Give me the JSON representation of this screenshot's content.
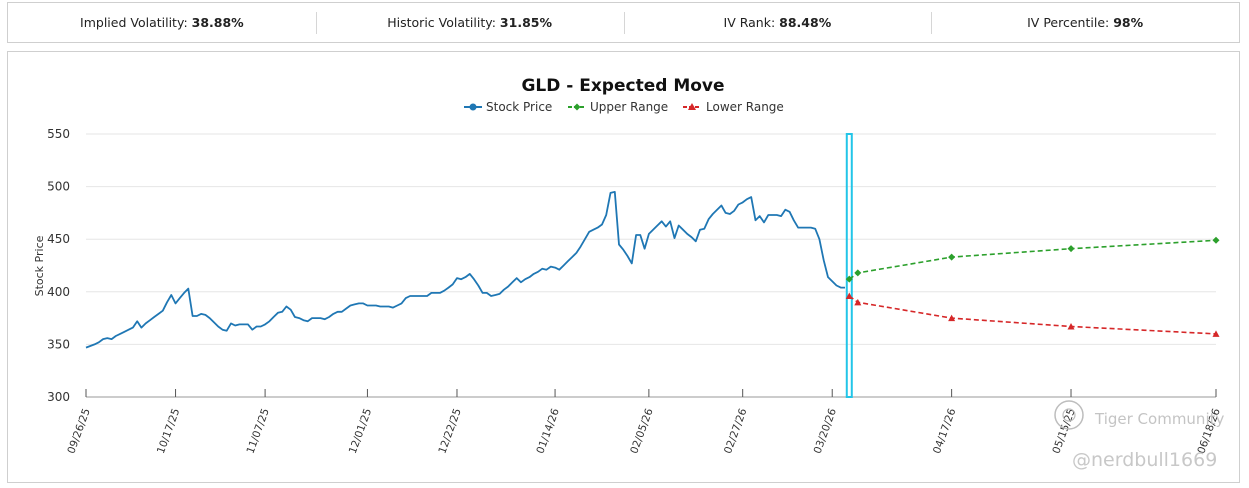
{
  "stats": [
    {
      "label": "Implied Volatility:",
      "value": "38.88%"
    },
    {
      "label": "Historic Volatility:",
      "value": "31.85%"
    },
    {
      "label": "IV Rank:",
      "value": "88.48%"
    },
    {
      "label": "IV Percentile:",
      "value": "98%"
    }
  ],
  "watermark": {
    "brand": "Tiger Community",
    "handle": "@nerdbull1669"
  },
  "colors": {
    "stock": "#1f77b4",
    "upper": "#2ca02c",
    "lower": "#d62728",
    "marker": "#22c5e8"
  },
  "chart_data": {
    "type": "line",
    "title": "GLD - Expected Move",
    "xlabel": "",
    "ylabel": "Stock Price",
    "ylim": [
      300,
      550
    ],
    "yticks": [
      300,
      350,
      400,
      450,
      500,
      550
    ],
    "xlim": [
      0,
      265
    ],
    "grid": true,
    "legend": "top-center",
    "x_ticks": [
      {
        "x": 0,
        "label": "09/26/25"
      },
      {
        "x": 21,
        "label": "10/17/25"
      },
      {
        "x": 42,
        "label": "11/07/25"
      },
      {
        "x": 66,
        "label": "12/01/25"
      },
      {
        "x": 87,
        "label": "12/22/25"
      },
      {
        "x": 110,
        "label": "01/14/26"
      },
      {
        "x": 132,
        "label": "02/05/26"
      },
      {
        "x": 154,
        "label": "02/27/26"
      },
      {
        "x": 175,
        "label": "03/20/26"
      },
      {
        "x": 203,
        "label": "04/17/26"
      },
      {
        "x": 231,
        "label": "05/15/25"
      },
      {
        "x": 265,
        "label": "06/18/26"
      }
    ],
    "current_marker_x": 179,
    "series": [
      {
        "name": "Stock Price",
        "marker": "circle",
        "points": [
          [
            0,
            347
          ],
          [
            2,
            350
          ],
          [
            3,
            352
          ],
          [
            4,
            355
          ],
          [
            5,
            356
          ],
          [
            6,
            355
          ],
          [
            7,
            358
          ],
          [
            8,
            360
          ],
          [
            9,
            362
          ],
          [
            10,
            364
          ],
          [
            11,
            366
          ],
          [
            12,
            372
          ],
          [
            13,
            366
          ],
          [
            14,
            370
          ],
          [
            15,
            373
          ],
          [
            16,
            376
          ],
          [
            17,
            379
          ],
          [
            18,
            382
          ],
          [
            19,
            390
          ],
          [
            20,
            397
          ],
          [
            21,
            389
          ],
          [
            22,
            394
          ],
          [
            23,
            399
          ],
          [
            24,
            403
          ],
          [
            25,
            377
          ],
          [
            26,
            377
          ],
          [
            27,
            379
          ],
          [
            28,
            378
          ],
          [
            29,
            375
          ],
          [
            30,
            371
          ],
          [
            31,
            367
          ],
          [
            32,
            364
          ],
          [
            33,
            363
          ],
          [
            34,
            370
          ],
          [
            35,
            368
          ],
          [
            36,
            369
          ],
          [
            37,
            369
          ],
          [
            38,
            369
          ],
          [
            39,
            364
          ],
          [
            40,
            367
          ],
          [
            41,
            367
          ],
          [
            42,
            369
          ],
          [
            43,
            372
          ],
          [
            44,
            376
          ],
          [
            45,
            380
          ],
          [
            46,
            381
          ],
          [
            47,
            386
          ],
          [
            48,
            383
          ],
          [
            49,
            376
          ],
          [
            50,
            375
          ],
          [
            51,
            373
          ],
          [
            52,
            372
          ],
          [
            53,
            375
          ],
          [
            54,
            375
          ],
          [
            55,
            375
          ],
          [
            56,
            374
          ],
          [
            57,
            376
          ],
          [
            58,
            379
          ],
          [
            59,
            381
          ],
          [
            60,
            381
          ],
          [
            61,
            384
          ],
          [
            62,
            387
          ],
          [
            63,
            388
          ],
          [
            64,
            389
          ],
          [
            65,
            389
          ],
          [
            66,
            387
          ],
          [
            67,
            387
          ],
          [
            68,
            387
          ],
          [
            69,
            386
          ],
          [
            70,
            386
          ],
          [
            71,
            386
          ],
          [
            72,
            385
          ],
          [
            73,
            387
          ],
          [
            74,
            389
          ],
          [
            75,
            394
          ],
          [
            76,
            396
          ],
          [
            77,
            396
          ],
          [
            78,
            396
          ],
          [
            79,
            396
          ],
          [
            80,
            396
          ],
          [
            81,
            399
          ],
          [
            82,
            399
          ],
          [
            83,
            399
          ],
          [
            84,
            401
          ],
          [
            85,
            404
          ],
          [
            86,
            407
          ],
          [
            87,
            413
          ],
          [
            88,
            412
          ],
          [
            89,
            414
          ],
          [
            90,
            417
          ],
          [
            91,
            412
          ],
          [
            92,
            406
          ],
          [
            93,
            399
          ],
          [
            94,
            399
          ],
          [
            95,
            396
          ],
          [
            96,
            397
          ],
          [
            97,
            398
          ],
          [
            98,
            402
          ],
          [
            99,
            405
          ],
          [
            100,
            409
          ],
          [
            101,
            413
          ],
          [
            102,
            409
          ],
          [
            103,
            412
          ],
          [
            104,
            414
          ],
          [
            105,
            417
          ],
          [
            106,
            419
          ],
          [
            107,
            422
          ],
          [
            108,
            421
          ],
          [
            109,
            424
          ],
          [
            110,
            423
          ],
          [
            111,
            421
          ],
          [
            112,
            425
          ],
          [
            113,
            429
          ],
          [
            114,
            433
          ],
          [
            115,
            437
          ],
          [
            116,
            443
          ],
          [
            117,
            450
          ],
          [
            118,
            457
          ],
          [
            119,
            459
          ],
          [
            120,
            461
          ],
          [
            121,
            464
          ],
          [
            122,
            473
          ],
          [
            123,
            494
          ],
          [
            124,
            495
          ],
          [
            125,
            445
          ],
          [
            126,
            440
          ],
          [
            127,
            434
          ],
          [
            128,
            427
          ],
          [
            129,
            454
          ],
          [
            130,
            454
          ],
          [
            131,
            441
          ],
          [
            132,
            455
          ],
          [
            133,
            459
          ],
          [
            134,
            463
          ],
          [
            135,
            467
          ],
          [
            136,
            462
          ],
          [
            137,
            467
          ],
          [
            138,
            451
          ],
          [
            139,
            463
          ],
          [
            140,
            459
          ],
          [
            141,
            455
          ],
          [
            142,
            452
          ],
          [
            143,
            448
          ],
          [
            144,
            459
          ],
          [
            145,
            460
          ],
          [
            146,
            469
          ],
          [
            147,
            474
          ],
          [
            148,
            478
          ],
          [
            149,
            482
          ],
          [
            150,
            475
          ],
          [
            151,
            474
          ],
          [
            152,
            477
          ],
          [
            153,
            483
          ],
          [
            154,
            485
          ],
          [
            155,
            488
          ],
          [
            156,
            490
          ],
          [
            157,
            468
          ],
          [
            158,
            472
          ],
          [
            159,
            466
          ],
          [
            160,
            473
          ],
          [
            161,
            473
          ],
          [
            162,
            473
          ],
          [
            163,
            472
          ],
          [
            164,
            478
          ],
          [
            165,
            476
          ],
          [
            166,
            468
          ],
          [
            167,
            461
          ],
          [
            168,
            461
          ],
          [
            169,
            461
          ],
          [
            170,
            461
          ],
          [
            171,
            460
          ],
          [
            172,
            450
          ],
          [
            173,
            430
          ],
          [
            174,
            414
          ],
          [
            175,
            410
          ],
          [
            176,
            406
          ],
          [
            177,
            404
          ],
          [
            178,
            404
          ]
        ]
      },
      {
        "name": "Upper Range",
        "marker": "diamond",
        "points": [
          [
            179,
            412
          ],
          [
            181,
            418
          ],
          [
            203,
            433
          ],
          [
            231,
            441
          ],
          [
            265,
            449
          ]
        ]
      },
      {
        "name": "Lower Range",
        "marker": "triangle",
        "points": [
          [
            179,
            396
          ],
          [
            181,
            390
          ],
          [
            203,
            375
          ],
          [
            231,
            367
          ],
          [
            265,
            360
          ]
        ]
      }
    ]
  }
}
